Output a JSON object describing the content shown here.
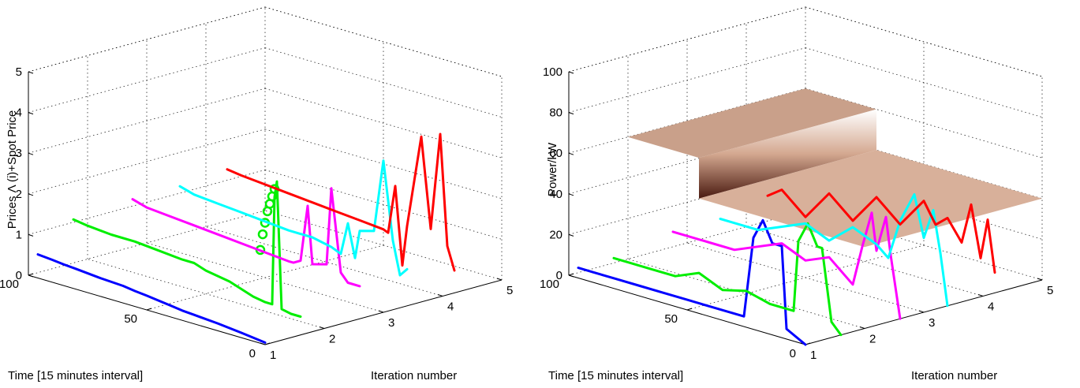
{
  "charts": [
    {
      "type": "line",
      "zlabel": "Prices Λ (i)+Spot Price",
      "xlabel": "Time [15 minutes interval]",
      "ylabel": "Iteration number",
      "x_ticks": [
        "100",
        "50",
        "0"
      ],
      "y_ticks": [
        "1",
        "2",
        "3",
        "4",
        "5"
      ],
      "z_ticks": [
        "0",
        "1",
        "2",
        "3",
        "4",
        "5"
      ],
      "zlim": [
        0,
        5
      ],
      "grid": true
    },
    {
      "type": "line",
      "zlabel": "Power/kW",
      "xlabel": "Time [15 minutes interval]",
      "ylabel": "Iteration number",
      "x_ticks": [
        "100",
        "50",
        "0"
      ],
      "y_ticks": [
        "1",
        "2",
        "3",
        "4",
        "5"
      ],
      "z_ticks": [
        "0",
        "20",
        "40",
        "60",
        "80",
        "100"
      ],
      "zlim": [
        0,
        100
      ],
      "grid": true
    }
  ],
  "chart_data": [
    {
      "type": "line",
      "title": "",
      "xlabel": "Time [15 minutes interval]",
      "ylabel": "Iteration number",
      "zlabel": "Prices Λ (i)+Spot Price",
      "xlim": [
        0,
        100
      ],
      "ylim": [
        1,
        5
      ],
      "zlim": [
        0,
        5
      ],
      "grid": true,
      "series": [
        {
          "iteration": 1,
          "color": "#0000ff",
          "t": [
            0,
            10,
            20,
            30,
            35,
            40,
            50,
            55,
            60,
            70,
            80,
            85,
            90,
            96
          ],
          "z": [
            0.05,
            0.12,
            0.18,
            0.22,
            0.24,
            0.28,
            0.35,
            0.38,
            0.42,
            0.45,
            0.5,
            0.52,
            0.55,
            0.58
          ]
        },
        {
          "iteration": 1.6,
          "color": "#00ee00",
          "t": [
            0,
            4,
            8,
            10,
            11,
            12,
            15,
            20,
            30,
            40,
            45,
            50,
            60,
            70,
            80,
            90,
            96
          ],
          "z": [
            0.45,
            0.45,
            0.5,
            3.6,
            3.2,
            0.55,
            0.55,
            0.6,
            0.8,
            0.9,
            1.0,
            1.0,
            1.05,
            1.1,
            1.1,
            1.15,
            1.2
          ],
          "markers_t": [
            11,
            12,
            13,
            14,
            15,
            16,
            17
          ],
          "markers_z": [
            3.4,
            3.2,
            3.0,
            2.8,
            2.5,
            2.2,
            1.8
          ]
        },
        {
          "iteration": 2.6,
          "color": "#ff00ff",
          "t": [
            0,
            5,
            8,
            12,
            14,
            20,
            22,
            25,
            28,
            30,
            40,
            50,
            60,
            70,
            80,
            90,
            96
          ],
          "z": [
            0.8,
            0.8,
            1.0,
            3.0,
            1.1,
            1.0,
            2.4,
            1.0,
            0.9,
            0.9,
            0.95,
            1.0,
            1.05,
            1.1,
            1.15,
            1.2,
            1.3
          ],
          "markers_t": [],
          "markers_z": []
        },
        {
          "iteration": 3.4,
          "color": "#00ffff",
          "t": [
            0,
            3,
            6,
            10,
            14,
            20,
            22,
            25,
            28,
            32,
            40,
            50,
            60,
            70,
            80,
            90,
            96
          ],
          "z": [
            0.9,
            0.7,
            1.5,
            3.4,
            1.6,
            1.5,
            0.8,
            1.6,
            0.8,
            0.9,
            1.0,
            1.0,
            1.05,
            1.1,
            1.15,
            1.2,
            1.3
          ],
          "markers_t": [],
          "markers_z": []
        },
        {
          "iteration": 4.2,
          "color": "#ff0000",
          "t": [
            0,
            3,
            6,
            10,
            14,
            20,
            22,
            25,
            28,
            30,
            40,
            50,
            60,
            70,
            80,
            90,
            96
          ],
          "z": [
            0.55,
            1.1,
            3.8,
            1.4,
            3.6,
            1.3,
            0.3,
            2.2,
            1.0,
            1.05,
            1.1,
            1.15,
            1.2,
            1.25,
            1.3,
            1.35,
            1.4
          ],
          "markers_t": [],
          "markers_z": []
        }
      ]
    },
    {
      "type": "line",
      "title": "",
      "xlabel": "Time [15 minutes interval]",
      "ylabel": "Iteration number",
      "zlabel": "Power/kW",
      "xlim": [
        0,
        100
      ],
      "ylim": [
        1,
        5
      ],
      "zlim": [
        0,
        100
      ],
      "grid": true,
      "surface": {
        "type": "surface",
        "y_range": [
          2,
          5
        ],
        "t_step_at": 70,
        "z_high": 60,
        "z_low": 40
      },
      "series": [
        {
          "iteration": 1,
          "color": "#0000ff",
          "t": [
            0,
            8,
            10,
            14,
            18,
            22,
            26,
            30,
            40,
            50,
            60,
            70,
            80,
            90,
            96
          ],
          "z": [
            0,
            5,
            45,
            45,
            55,
            45,
            5,
            5,
            5,
            5,
            5,
            5,
            5,
            5,
            5
          ]
        },
        {
          "iteration": 1.6,
          "color": "#00ee00",
          "t": [
            0,
            4,
            8,
            10,
            14,
            18,
            20,
            30,
            40,
            50,
            60,
            70,
            80,
            90,
            96
          ],
          "z": [
            0,
            5,
            40,
            40,
            50,
            40,
            5,
            5,
            8,
            5,
            10,
            5,
            5,
            5,
            5
          ]
        },
        {
          "iteration": 2.6,
          "color": "#ff00ff",
          "t": [
            0,
            4,
            6,
            10,
            12,
            16,
            20,
            30,
            40,
            50,
            60,
            70,
            80,
            90,
            96
          ],
          "z": [
            0,
            30,
            48,
            30,
            48,
            30,
            10,
            20,
            15,
            20,
            15,
            10,
            10,
            10,
            10
          ]
        },
        {
          "iteration": 3.4,
          "color": "#00ffff",
          "t": [
            0,
            3,
            6,
            10,
            14,
            20,
            25,
            30,
            40,
            50,
            60,
            70,
            80,
            90,
            96
          ],
          "z": [
            0,
            25,
            45,
            30,
            50,
            35,
            15,
            20,
            25,
            15,
            20,
            15,
            10,
            10,
            10
          ]
        },
        {
          "iteration": 4.2,
          "color": "#ff0000",
          "t": [
            0,
            3,
            6,
            10,
            14,
            20,
            25,
            30,
            40,
            50,
            60,
            70,
            80,
            90,
            96
          ],
          "z": [
            10,
            35,
            15,
            40,
            20,
            30,
            25,
            35,
            20,
            30,
            15,
            25,
            10,
            20,
            15
          ]
        }
      ]
    }
  ]
}
